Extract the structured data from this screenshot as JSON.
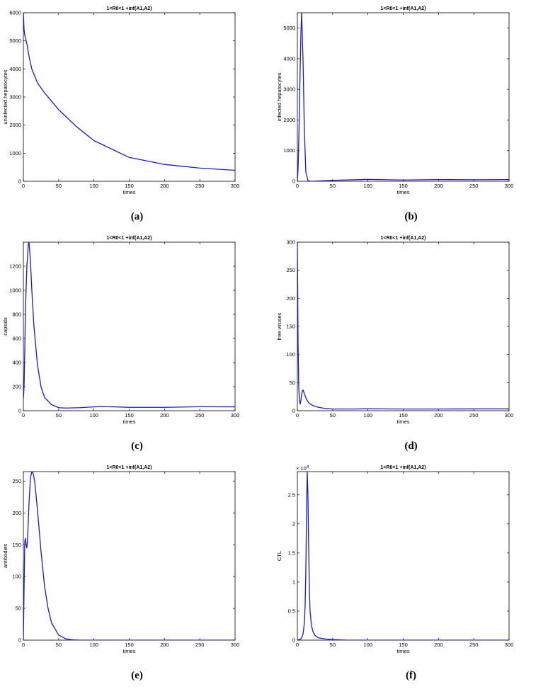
{
  "chart_data": [
    {
      "type": "line",
      "panel_label": "(a)",
      "title": "1<R0<1 +inf(A1,A2)",
      "xlabel": "times",
      "ylabel": "uninfected hepatocytes",
      "xlim": [
        0,
        300
      ],
      "ylim": [
        0,
        6000
      ],
      "xticks": [
        0,
        50,
        100,
        150,
        200,
        250,
        300
      ],
      "yticks": [
        0,
        1000,
        2000,
        3000,
        4000,
        5000,
        6000
      ],
      "series": [
        {
          "color": "#1a1ad4",
          "x": [
            0,
            1,
            2,
            5,
            8,
            12,
            20,
            30,
            50,
            75,
            100,
            150,
            200,
            250,
            300
          ],
          "y": [
            6000,
            5400,
            5200,
            4900,
            4450,
            4000,
            3500,
            3150,
            2550,
            1950,
            1450,
            850,
            600,
            470,
            390
          ]
        }
      ]
    },
    {
      "type": "line",
      "panel_label": "(b)",
      "title": "1<R0<1 +inf(A1,A2)",
      "xlabel": "times",
      "ylabel": "infected hepatocytes",
      "xlim": [
        0,
        300
      ],
      "ylim": [
        0,
        5500
      ],
      "xticks": [
        0,
        50,
        100,
        150,
        200,
        250,
        300
      ],
      "yticks": [
        0,
        1000,
        2000,
        3000,
        4000,
        5000
      ],
      "series": [
        {
          "color": "#1a1ad4",
          "x": [
            0,
            1,
            2,
            3,
            4,
            5,
            6,
            8,
            10,
            12,
            15,
            20,
            30,
            50,
            100,
            150,
            200,
            250,
            300
          ],
          "y": [
            0,
            400,
            1300,
            2500,
            3700,
            4800,
            5500,
            4000,
            1600,
            300,
            20,
            0,
            10,
            30,
            60,
            40,
            55,
            50,
            55
          ]
        }
      ]
    },
    {
      "type": "line",
      "panel_label": "(c)",
      "title": "1<R0<1 +inf(A1,A2)",
      "xlabel": "times",
      "ylabel": "capsids",
      "xlim": [
        0,
        300
      ],
      "ylim": [
        0,
        1400
      ],
      "xticks": [
        0,
        50,
        100,
        150,
        200,
        250,
        300
      ],
      "yticks": [
        0,
        200,
        400,
        600,
        800,
        1000,
        1200
      ],
      "series": [
        {
          "color": "#1a1ad4",
          "x": [
            0,
            1,
            2,
            3,
            5,
            7,
            8,
            10,
            12,
            15,
            20,
            25,
            30,
            40,
            50,
            60,
            80,
            100,
            110,
            130,
            150,
            200,
            250,
            300
          ],
          "y": [
            100,
            200,
            500,
            850,
            1200,
            1380,
            1400,
            1250,
            1000,
            700,
            380,
            200,
            110,
            50,
            25,
            22,
            25,
            32,
            34,
            32,
            28,
            28,
            33,
            32
          ]
        }
      ]
    },
    {
      "type": "line",
      "panel_label": "(d)",
      "title": "1<R0<1 +inf(A1,A2)",
      "xlabel": "times",
      "ylabel": "free viruses",
      "xlim": [
        0,
        300
      ],
      "ylim": [
        0,
        300
      ],
      "xticks": [
        0,
        50,
        100,
        150,
        200,
        250,
        300
      ],
      "yticks": [
        0,
        50,
        100,
        150,
        200,
        250,
        300
      ],
      "series": [
        {
          "color": "#1a1ad4",
          "x": [
            0,
            1,
            2,
            3,
            4,
            5,
            6,
            7,
            8,
            10,
            13,
            17,
            22,
            30,
            40,
            50,
            80,
            100,
            150,
            200,
            250,
            300
          ],
          "y": [
            300,
            120,
            40,
            18,
            12,
            18,
            28,
            35,
            37,
            30,
            20,
            13,
            9,
            6,
            4,
            3,
            3,
            3.5,
            3,
            3,
            3.2,
            3.2
          ]
        }
      ]
    },
    {
      "type": "line",
      "panel_label": "(e)",
      "title": "1<R0<1 +inf(A1,A2)",
      "xlabel": "times",
      "ylabel": "antibodies",
      "xlim": [
        0,
        300
      ],
      "ylim": [
        0,
        265
      ],
      "xticks": [
        0,
        50,
        100,
        150,
        200,
        250,
        300
      ],
      "yticks": [
        0,
        50,
        100,
        150,
        200,
        250
      ],
      "series": [
        {
          "color": "#1a1ad4",
          "x": [
            0,
            1,
            2,
            3,
            4,
            5,
            6,
            8,
            10,
            12,
            14,
            16,
            20,
            25,
            30,
            35,
            40,
            50,
            60,
            70,
            80,
            100,
            150,
            200,
            250,
            300
          ],
          "y": [
            0,
            80,
            155,
            160,
            150,
            145,
            160,
            215,
            255,
            265,
            262,
            250,
            205,
            140,
            85,
            50,
            27,
            8,
            2,
            0.5,
            0,
            0,
            0,
            0,
            0,
            0
          ]
        }
      ]
    },
    {
      "type": "line",
      "panel_label": "(f)",
      "title": "1<R0<1 +inf(A1,A2)",
      "xlabel": "times",
      "ylabel": "CTL",
      "xlim": [
        0,
        300
      ],
      "ylim": [
        0,
        2.9
      ],
      "y_multiplier": "× 10",
      "y_multiplier_exp": "4",
      "xticks": [
        0,
        50,
        100,
        150,
        200,
        250,
        300
      ],
      "yticks": [
        0,
        0.5,
        1,
        1.5,
        2,
        2.5
      ],
      "series": [
        {
          "color": "#1a1ad4",
          "x": [
            0,
            5,
            8,
            10,
            11,
            12,
            13,
            14,
            15,
            16,
            17,
            18,
            20,
            22,
            25,
            30,
            40,
            50,
            70,
            100,
            150,
            200,
            250,
            300
          ],
          "y": [
            0,
            0.02,
            0.1,
            0.3,
            0.6,
            1.2,
            2.2,
            2.9,
            2.5,
            1.6,
            0.9,
            0.5,
            0.25,
            0.15,
            0.08,
            0.04,
            0.02,
            0.01,
            0,
            0,
            0,
            0,
            0,
            0
          ]
        }
      ]
    }
  ]
}
